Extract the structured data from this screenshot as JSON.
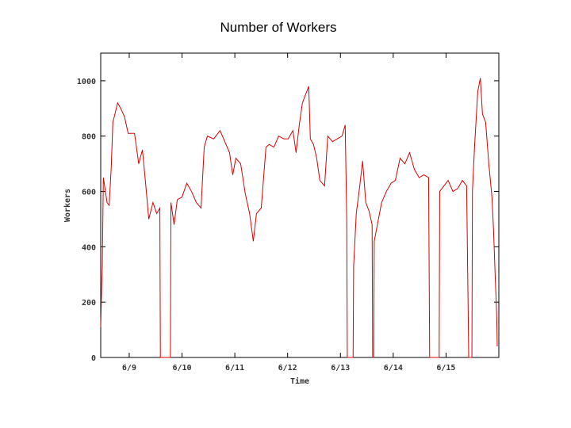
{
  "chart_data": {
    "type": "line",
    "title": "Number of Workers",
    "xlabel": "Time",
    "ylabel": "Workers",
    "xlim": [
      8.46,
      16.0
    ],
    "ylim": [
      0,
      1100
    ],
    "xticks": [
      {
        "value": 9,
        "label": "6/9"
      },
      {
        "value": 10,
        "label": "6/10"
      },
      {
        "value": 11,
        "label": "6/11"
      },
      {
        "value": 12,
        "label": "6/12"
      },
      {
        "value": 13,
        "label": "6/13"
      },
      {
        "value": 14,
        "label": "6/14"
      },
      {
        "value": 15,
        "label": "6/15"
      }
    ],
    "yticks": [
      0,
      200,
      400,
      600,
      800,
      1000
    ],
    "grid": false,
    "series": [
      {
        "name": "Workers",
        "color": "#dd0000",
        "x": [
          8.46,
          8.48,
          8.49,
          8.51,
          8.58,
          8.62,
          8.66,
          8.69,
          8.73,
          8.78,
          8.84,
          8.91,
          8.98,
          9.1,
          9.18,
          9.25,
          9.31,
          9.37,
          9.45,
          9.52,
          9.58,
          9.59,
          9.78,
          9.79,
          9.85,
          9.91,
          10.0,
          10.09,
          10.18,
          10.27,
          10.36,
          10.42,
          10.48,
          10.6,
          10.72,
          10.81,
          10.9,
          10.96,
          11.02,
          11.11,
          11.2,
          11.28,
          11.35,
          11.41,
          11.5,
          11.59,
          11.65,
          11.74,
          11.83,
          11.93,
          12.01,
          12.1,
          12.16,
          12.22,
          12.28,
          12.34,
          12.4,
          12.43,
          12.49,
          12.55,
          12.61,
          12.7,
          12.76,
          12.85,
          12.94,
          13.03,
          13.09,
          13.12,
          13.13,
          13.24,
          13.25,
          13.3,
          13.36,
          13.42,
          13.48,
          13.54,
          13.6,
          13.61,
          13.63,
          13.64,
          13.72,
          13.78,
          13.87,
          13.96,
          14.04,
          14.13,
          14.22,
          14.31,
          14.4,
          14.49,
          14.58,
          14.67,
          14.69,
          14.87,
          14.88,
          14.96,
          15.04,
          15.13,
          15.22,
          15.31,
          15.39,
          15.43,
          15.49,
          15.5,
          15.54,
          15.6,
          15.65,
          15.69,
          15.75,
          15.81,
          15.87,
          15.9,
          15.93,
          15.96,
          15.97
        ],
        "values": [
          110,
          270,
          330,
          650,
          560,
          550,
          690,
          850,
          880,
          920,
          900,
          870,
          810,
          810,
          700,
          750,
          630,
          500,
          560,
          520,
          540,
          0,
          0,
          560,
          480,
          570,
          580,
          630,
          600,
          560,
          540,
          760,
          800,
          790,
          820,
          780,
          740,
          660,
          720,
          700,
          590,
          520,
          420,
          520,
          540,
          760,
          770,
          760,
          800,
          790,
          790,
          820,
          740,
          840,
          920,
          950,
          980,
          790,
          770,
          720,
          640,
          620,
          800,
          780,
          790,
          800,
          840,
          500,
          0,
          0,
          330,
          520,
          610,
          710,
          560,
          530,
          480,
          0,
          0,
          420,
          500,
          560,
          600,
          630,
          640,
          720,
          700,
          740,
          680,
          650,
          660,
          650,
          0,
          0,
          600,
          620,
          640,
          600,
          610,
          640,
          620,
          0,
          0,
          600,
          760,
          960,
          1010,
          880,
          850,
          700,
          580,
          460,
          300,
          150,
          40
        ]
      }
    ]
  }
}
